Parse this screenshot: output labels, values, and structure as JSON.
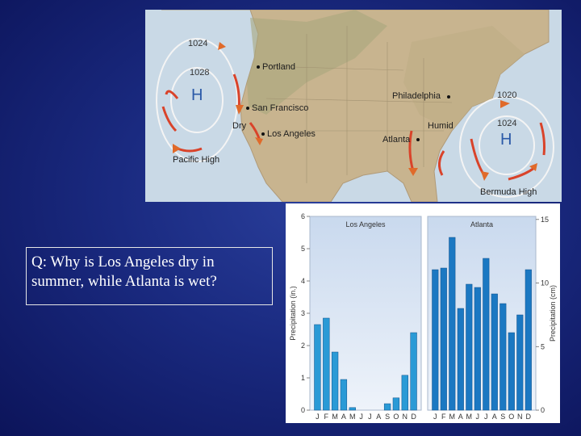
{
  "slide": {
    "question": "Q: Why is Los Angeles dry in summer, while Atlanta is wet?"
  },
  "map": {
    "labels": {
      "portland": "Portland",
      "san_francisco": "San Francisco",
      "los_angeles": "Los Angeles",
      "dry": "Dry",
      "philadelphia": "Philadelphia",
      "humid": "Humid",
      "atlanta": "Atlanta",
      "pacific_high": "Pacific High",
      "bermuda_high": "Bermuda High"
    },
    "pacific_isobars": [
      "1024",
      "1028"
    ],
    "bermuda_isobars": [
      "1020",
      "1024"
    ],
    "high_symbol": "H"
  },
  "chart_data": [
    {
      "type": "bar",
      "title": "Los Angeles",
      "categories": [
        "J",
        "F",
        "M",
        "A",
        "M",
        "J",
        "J",
        "A",
        "S",
        "O",
        "N",
        "D"
      ],
      "values": [
        2.65,
        2.85,
        1.8,
        0.95,
        0.08,
        0.0,
        0.0,
        0.0,
        0.2,
        0.38,
        1.08,
        2.4
      ],
      "ylabel": "Precipitation (in.)",
      "ylim": [
        0,
        6
      ],
      "yticks": [
        0,
        1,
        2,
        3,
        4,
        5,
        6
      ],
      "bar_color": "#2a9ad6"
    },
    {
      "type": "bar",
      "title": "Atlanta",
      "categories": [
        "J",
        "F",
        "M",
        "A",
        "M",
        "J",
        "J",
        "A",
        "S",
        "O",
        "N",
        "D"
      ],
      "values": [
        4.35,
        4.4,
        5.35,
        3.15,
        3.9,
        3.8,
        4.7,
        3.6,
        3.3,
        2.4,
        2.95,
        4.35
      ],
      "ylabel": "Precipitation (cm)",
      "ylim": [
        0,
        6
      ],
      "right_ticks": [
        0,
        5,
        10,
        15
      ],
      "bar_color": "#1b78c2"
    }
  ]
}
